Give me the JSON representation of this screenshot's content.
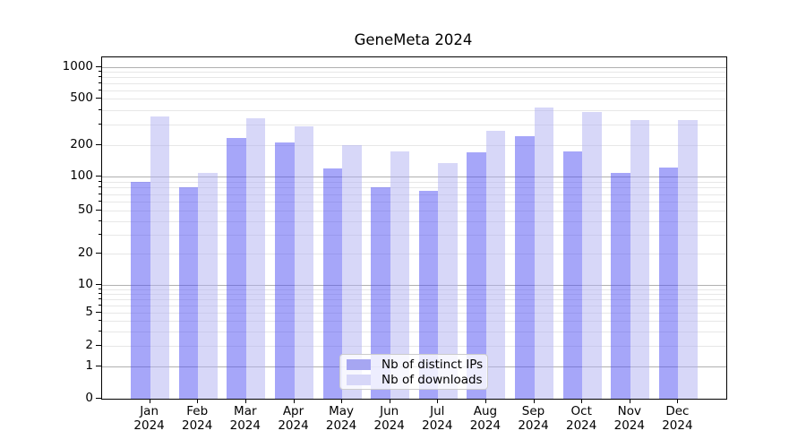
{
  "title": "GeneMeta 2024",
  "chart_data": {
    "type": "bar",
    "title": "GeneMeta 2024",
    "xlabel": "",
    "ylabel": "",
    "yscale": "symlog",
    "ylim": [
      0,
      1230
    ],
    "grid": "on",
    "legend_position": "lower center",
    "y_ticks": [
      0,
      1,
      2,
      5,
      10,
      20,
      50,
      100,
      200,
      500,
      1000
    ],
    "categories": [
      "Jan 2024",
      "Feb 2024",
      "Mar 2024",
      "Apr 2024",
      "May 2024",
      "Jun 2024",
      "Jul 2024",
      "Aug 2024",
      "Sep 2024",
      "Oct 2024",
      "Nov 2024",
      "Dec 2024"
    ],
    "series": [
      {
        "name": "Nb of distinct IPs",
        "fill": "rgba(78,78,243,0.5)",
        "swatch": "#a6a6f2",
        "values": [
          90,
          81,
          230,
          210,
          120,
          80,
          75,
          170,
          240,
          175,
          108,
          122
        ]
      },
      {
        "name": "Nb of downloads",
        "fill": "rgba(176,176,242,0.5)",
        "swatch": "#d7d7f8",
        "values": [
          350,
          108,
          340,
          290,
          200,
          175,
          135,
          265,
          420,
          385,
          330,
          330
        ]
      }
    ]
  },
  "legend": {
    "items": [
      {
        "label": "Nb of distinct IPs",
        "color": "#a6a6f2"
      },
      {
        "label": "Nb of downloads",
        "color": "#d7d7f8"
      }
    ]
  }
}
